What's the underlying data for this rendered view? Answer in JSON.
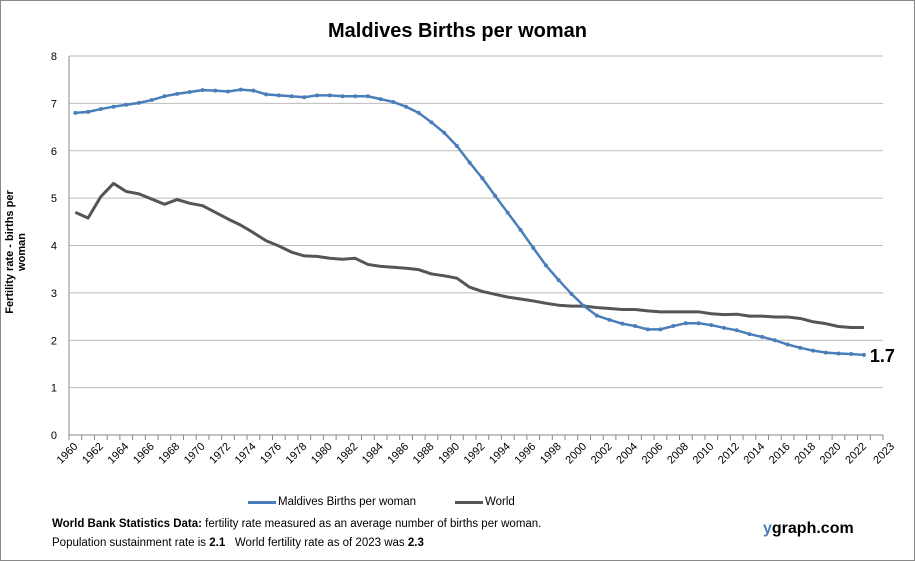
{
  "chart_data": {
    "type": "line",
    "title": "Maldives Births per woman",
    "ylabel": "Fertility rate  - births per woman",
    "xlabel": "",
    "ylim": [
      0,
      8
    ],
    "yticks": [
      0,
      1,
      2,
      3,
      4,
      5,
      6,
      7,
      8
    ],
    "grid": true,
    "legend_position": "bottom",
    "x": [
      1960,
      1961,
      1962,
      1963,
      1964,
      1965,
      1966,
      1967,
      1968,
      1969,
      1970,
      1971,
      1972,
      1973,
      1974,
      1975,
      1976,
      1977,
      1978,
      1979,
      1980,
      1981,
      1982,
      1983,
      1984,
      1985,
      1986,
      1987,
      1988,
      1989,
      1990,
      1991,
      1992,
      1993,
      1994,
      1995,
      1996,
      1997,
      1998,
      1999,
      2000,
      2001,
      2002,
      2003,
      2004,
      2005,
      2006,
      2007,
      2008,
      2009,
      2010,
      2011,
      2012,
      2013,
      2014,
      2015,
      2016,
      2017,
      2018,
      2019,
      2020,
      2021,
      2022
    ],
    "xtick_labels": [
      "1960",
      "1962",
      "1964",
      "1966",
      "1968",
      "1970",
      "1972",
      "1974",
      "1976",
      "1978",
      "1980",
      "1982",
      "1984",
      "1986",
      "1988",
      "1990",
      "1992",
      "1994",
      "1996",
      "1998",
      "2000",
      "2002",
      "2004",
      "2006",
      "2008",
      "2010",
      "2012",
      "2014",
      "2016",
      "2018",
      "2020",
      "2022",
      "2023"
    ],
    "series": [
      {
        "name": "Maldives Births per woman",
        "color": "#4a7ebb",
        "markers": true,
        "values": [
          6.8,
          6.82,
          6.88,
          6.93,
          6.97,
          7.01,
          7.07,
          7.15,
          7.2,
          7.24,
          7.28,
          7.27,
          7.25,
          7.29,
          7.27,
          7.19,
          7.17,
          7.15,
          7.13,
          7.17,
          7.17,
          7.15,
          7.15,
          7.15,
          7.09,
          7.03,
          6.93,
          6.8,
          6.6,
          6.38,
          6.1,
          5.75,
          5.42,
          5.05,
          4.69,
          4.33,
          3.95,
          3.58,
          3.27,
          2.98,
          2.72,
          2.52,
          2.43,
          2.35,
          2.3,
          2.23,
          2.23,
          2.3,
          2.36,
          2.36,
          2.32,
          2.26,
          2.21,
          2.13,
          2.07,
          2.0,
          1.91,
          1.84,
          1.78,
          1.74,
          1.72,
          1.71,
          1.69
        ]
      },
      {
        "name": "World",
        "color": "#555555",
        "markers": false,
        "values": [
          4.7,
          4.58,
          5.03,
          5.31,
          5.14,
          5.09,
          4.98,
          4.87,
          4.97,
          4.89,
          4.84,
          4.7,
          4.56,
          4.43,
          4.27,
          4.1,
          3.99,
          3.86,
          3.78,
          3.77,
          3.73,
          3.71,
          3.73,
          3.6,
          3.56,
          3.54,
          3.52,
          3.49,
          3.4,
          3.36,
          3.31,
          3.12,
          3.03,
          2.97,
          2.91,
          2.87,
          2.83,
          2.78,
          2.74,
          2.72,
          2.72,
          2.69,
          2.67,
          2.65,
          2.65,
          2.62,
          2.6,
          2.6,
          2.6,
          2.6,
          2.56,
          2.54,
          2.55,
          2.51,
          2.51,
          2.49,
          2.49,
          2.46,
          2.39,
          2.35,
          2.29,
          2.27,
          2.27
        ]
      }
    ],
    "annotations": [
      "1.7"
    ]
  },
  "notes": {
    "line1_bold": "World Bank Statistics Data:",
    "line1_rest": " fertility rate measured as an average number  of births per woman.",
    "line2_a": "Population sustainment rate is ",
    "line2_b": "2.1",
    "line2_c": "   World fertility rate as of 2023 was ",
    "line2_d": "2.3"
  },
  "brand": {
    "y": "y",
    "rest": "graph.com"
  }
}
